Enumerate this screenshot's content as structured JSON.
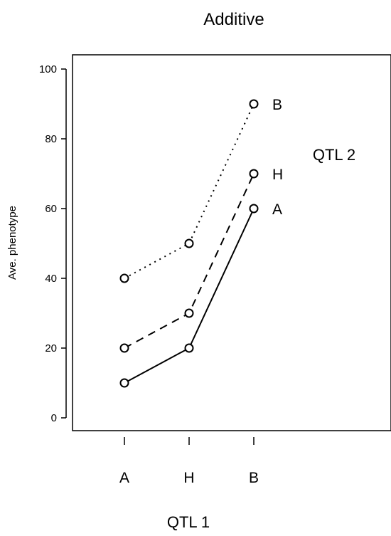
{
  "chart_data": {
    "type": "line",
    "title": "Additive",
    "xlabel": "QTL 1",
    "ylabel": "Ave. phenotype",
    "categories": [
      "A",
      "H",
      "B"
    ],
    "ylim": [
      0,
      100
    ],
    "yticks": [
      0,
      20,
      40,
      60,
      80,
      100
    ],
    "legend_title": "QTL 2",
    "legend_placement": "right",
    "grid": false,
    "series": [
      {
        "name": "A",
        "values": [
          10,
          20,
          60
        ],
        "line_style": "solid",
        "marker": "open-circle",
        "color": "#000000"
      },
      {
        "name": "H",
        "values": [
          20,
          30,
          70
        ],
        "line_style": "dashed",
        "marker": "open-circle",
        "color": "#000000"
      },
      {
        "name": "B",
        "values": [
          40,
          50,
          90
        ],
        "line_style": "dotted",
        "marker": "open-circle",
        "color": "#000000"
      }
    ]
  }
}
